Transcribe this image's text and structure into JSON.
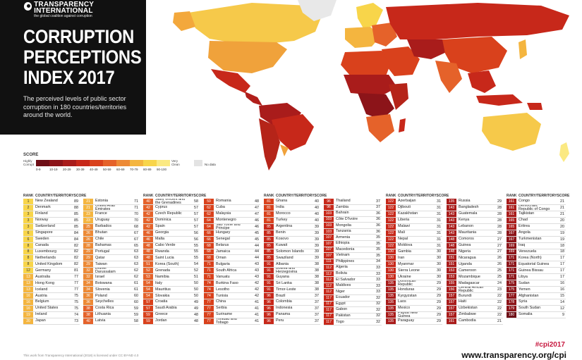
{
  "brand": {
    "name": "TRANSPARENCY INTERNATIONAL",
    "tagline": "the global coalition against corruption"
  },
  "title": "CORRUPTION\nPERCEPTIONS\nINDEX 2017",
  "subtitle": "The perceived levels of public sector corruption in 180 countries/territories around the world.",
  "legend": {
    "title": "SCORE",
    "low_label": "Highly Corrupt",
    "high_label": "Very Clean",
    "bands": [
      "0-9",
      "10-19",
      "20-29",
      "30-39",
      "40-49",
      "50-59",
      "60-69",
      "70-79",
      "80-89",
      "90-100"
    ],
    "colors": [
      "#6e0e16",
      "#8c1419",
      "#a91c1b",
      "#c7281a",
      "#d9411c",
      "#e5622a",
      "#ed8a36",
      "#f4b53f",
      "#f8d54a",
      "#fbe982"
    ],
    "no_data": "No data",
    "no_data_color": "#e3e3e3"
  },
  "headers": {
    "rank": "RANK",
    "country": "COUNTRY/TERRITORY",
    "score": "SCORE"
  },
  "columns": [
    [
      [
        "1",
        "New Zealand",
        "89"
      ],
      [
        "2",
        "Denmark",
        "88"
      ],
      [
        "3",
        "Finland",
        "85"
      ],
      [
        "3",
        "Norway",
        "85"
      ],
      [
        "3",
        "Switzerland",
        "85"
      ],
      [
        "6",
        "Singapore",
        "84"
      ],
      [
        "6",
        "Sweden",
        "84"
      ],
      [
        "8",
        "Canada",
        "82"
      ],
      [
        "8",
        "Luxembourg",
        "82"
      ],
      [
        "8",
        "Netherlands",
        "82"
      ],
      [
        "8",
        "United Kingdom",
        "82"
      ],
      [
        "12",
        "Germany",
        "81"
      ],
      [
        "13",
        "Australia",
        "77"
      ],
      [
        "13",
        "Hong Kong",
        "77"
      ],
      [
        "13",
        "Iceland",
        "77"
      ],
      [
        "16",
        "Austria",
        "75"
      ],
      [
        "16",
        "Belgium",
        "75"
      ],
      [
        "16",
        "United States",
        "75"
      ],
      [
        "19",
        "Ireland",
        "74"
      ],
      [
        "20",
        "Japan",
        "73"
      ]
    ],
    [
      [
        "21",
        "Estonia",
        "71"
      ],
      [
        "21",
        "United Arab Emirates",
        "71"
      ],
      [
        "23",
        "France",
        "70"
      ],
      [
        "23",
        "Uruguay",
        "70"
      ],
      [
        "25",
        "Barbados",
        "68"
      ],
      [
        "26",
        "Bhutan",
        "67"
      ],
      [
        "26",
        "Chile",
        "67"
      ],
      [
        "28",
        "Bahamas",
        "65"
      ],
      [
        "29",
        "Portugal",
        "63"
      ],
      [
        "29",
        "Qatar",
        "63"
      ],
      [
        "29",
        "Taiwan",
        "63"
      ],
      [
        "32",
        "Brunei Darussalam",
        "62"
      ],
      [
        "32",
        "Israel",
        "62"
      ],
      [
        "34",
        "Botswana",
        "61"
      ],
      [
        "34",
        "Slovenia",
        "61"
      ],
      [
        "36",
        "Poland",
        "60"
      ],
      [
        "36",
        "Seychelles",
        "60"
      ],
      [
        "38",
        "Costa Rica",
        "59"
      ],
      [
        "38",
        "Lithuania",
        "59"
      ],
      [
        "40",
        "Latvia",
        "58"
      ]
    ],
    [
      [
        "40",
        "Saint Vincent and the Grenadines",
        "58"
      ],
      [
        "42",
        "Cyprus",
        "57"
      ],
      [
        "42",
        "Czech Republic",
        "57"
      ],
      [
        "42",
        "Dominica",
        "57"
      ],
      [
        "42",
        "Spain",
        "57"
      ],
      [
        "46",
        "Georgia",
        "56"
      ],
      [
        "46",
        "Malta",
        "56"
      ],
      [
        "48",
        "Cabo Verde",
        "55"
      ],
      [
        "48",
        "Rwanda",
        "55"
      ],
      [
        "48",
        "Saint Lucia",
        "55"
      ],
      [
        "51",
        "Korea (South)",
        "54"
      ],
      [
        "52",
        "Grenada",
        "52"
      ],
      [
        "53",
        "Namibia",
        "51"
      ],
      [
        "54",
        "Italy",
        "50"
      ],
      [
        "54",
        "Mauritius",
        "50"
      ],
      [
        "54",
        "Slovakia",
        "50"
      ],
      [
        "57",
        "Croatia",
        "49"
      ],
      [
        "57",
        "Saudi Arabia",
        "49"
      ],
      [
        "59",
        "Greece",
        "48"
      ],
      [
        "59",
        "Jordan",
        "48"
      ]
    ],
    [
      [
        "59",
        "Romania",
        "48"
      ],
      [
        "62",
        "Cuba",
        "47"
      ],
      [
        "62",
        "Malaysia",
        "47"
      ],
      [
        "64",
        "Montenegro",
        "46"
      ],
      [
        "64",
        "Sao Tome and Principe",
        "46"
      ],
      [
        "66",
        "Hungary",
        "45"
      ],
      [
        "66",
        "Senegal",
        "45"
      ],
      [
        "68",
        "Belarus",
        "44"
      ],
      [
        "68",
        "Jamaica",
        "44"
      ],
      [
        "68",
        "Oman",
        "44"
      ],
      [
        "71",
        "Bulgaria",
        "43"
      ],
      [
        "71",
        "South Africa",
        "43"
      ],
      [
        "71",
        "Vanuatu",
        "43"
      ],
      [
        "74",
        "Burkina Faso",
        "42"
      ],
      [
        "74",
        "Lesotho",
        "42"
      ],
      [
        "74",
        "Tunisia",
        "42"
      ],
      [
        "77",
        "China",
        "41"
      ],
      [
        "77",
        "Serbia",
        "41"
      ],
      [
        "77",
        "Suriname",
        "41"
      ],
      [
        "77",
        "Trinidad and Tobago",
        "41"
      ]
    ],
    [
      [
        "81",
        "Ghana",
        "40"
      ],
      [
        "81",
        "India",
        "40"
      ],
      [
        "81",
        "Morocco",
        "40"
      ],
      [
        "81",
        "Turkey",
        "40"
      ],
      [
        "85",
        "Argentina",
        "39"
      ],
      [
        "85",
        "Benin",
        "39"
      ],
      [
        "85",
        "Kosovo",
        "39"
      ],
      [
        "85",
        "Kuwait",
        "39"
      ],
      [
        "85",
        "Solomon Islands",
        "39"
      ],
      [
        "85",
        "Swaziland",
        "39"
      ],
      [
        "91",
        "Albania",
        "38"
      ],
      [
        "91",
        "Bosnia and Herzegovina",
        "38"
      ],
      [
        "91",
        "Guyana",
        "38"
      ],
      [
        "91",
        "Sri Lanka",
        "38"
      ],
      [
        "91",
        "Timor-Leste",
        "38"
      ],
      [
        "96",
        "Brazil",
        "37"
      ],
      [
        "96",
        "Colombia",
        "37"
      ],
      [
        "96",
        "Indonesia",
        "37"
      ],
      [
        "96",
        "Panama",
        "37"
      ],
      [
        "96",
        "Peru",
        "37"
      ]
    ],
    [
      [
        "96",
        "Thailand",
        "37"
      ],
      [
        "96",
        "Zambia",
        "37"
      ],
      [
        "103",
        "Bahrain",
        "36"
      ],
      [
        "103",
        "Côte D'Ivoire",
        "36"
      ],
      [
        "103",
        "Mongolia",
        "36"
      ],
      [
        "103",
        "Tanzania",
        "36"
      ],
      [
        "107",
        "Armenia",
        "35"
      ],
      [
        "107",
        "Ethiopia",
        "35"
      ],
      [
        "107",
        "Macedonia",
        "35"
      ],
      [
        "107",
        "Vietnam",
        "35"
      ],
      [
        "111",
        "Philippines",
        "34"
      ],
      [
        "112",
        "Algeria",
        "33"
      ],
      [
        "112",
        "Bolivia",
        "33"
      ],
      [
        "112",
        "El Salvador",
        "33"
      ],
      [
        "112",
        "Maldives",
        "33"
      ],
      [
        "112",
        "Niger",
        "33"
      ],
      [
        "117",
        "Ecuador",
        "32"
      ],
      [
        "117",
        "Egypt",
        "32"
      ],
      [
        "117",
        "Gabon",
        "32"
      ],
      [
        "117",
        "Pakistan",
        "32"
      ],
      [
        "117",
        "Togo",
        "32"
      ]
    ],
    [
      [
        "122",
        "Azerbaijan",
        "31"
      ],
      [
        "122",
        "Djibouti",
        "31"
      ],
      [
        "122",
        "Kazakhstan",
        "31"
      ],
      [
        "122",
        "Liberia",
        "31"
      ],
      [
        "122",
        "Malawi",
        "31"
      ],
      [
        "122",
        "Mali",
        "31"
      ],
      [
        "122",
        "Nepal",
        "31"
      ],
      [
        "122",
        "Moldova",
        "31"
      ],
      [
        "130",
        "Gambia",
        "30"
      ],
      [
        "130",
        "Iran",
        "30"
      ],
      [
        "130",
        "Myanmar",
        "30"
      ],
      [
        "130",
        "Sierra Leone",
        "30"
      ],
      [
        "130",
        "Ukraine",
        "30"
      ],
      [
        "135",
        "Dominican Republic",
        "29"
      ],
      [
        "135",
        "Honduras",
        "29"
      ],
      [
        "135",
        "Kyrgyzstan",
        "29"
      ],
      [
        "135",
        "Laos",
        "29"
      ],
      [
        "135",
        "Mexico",
        "29"
      ],
      [
        "135",
        "Papua New Guinea",
        "29"
      ],
      [
        "135",
        "Paraguay",
        "29"
      ]
    ],
    [
      [
        "135",
        "Russia",
        "29"
      ],
      [
        "143",
        "Bangladesh",
        "28"
      ],
      [
        "143",
        "Guatemala",
        "28"
      ],
      [
        "143",
        "Kenya",
        "28"
      ],
      [
        "143",
        "Lebanon",
        "28"
      ],
      [
        "143",
        "Mauritania",
        "28"
      ],
      [
        "148",
        "Comoros",
        "27"
      ],
      [
        "148",
        "Guinea",
        "27"
      ],
      [
        "148",
        "Nigeria",
        "27"
      ],
      [
        "151",
        "Nicaragua",
        "26"
      ],
      [
        "151",
        "Uganda",
        "26"
      ],
      [
        "153",
        "Cameroon",
        "25"
      ],
      [
        "153",
        "Mozambique",
        "25"
      ],
      [
        "155",
        "Madagascar",
        "24"
      ],
      [
        "156",
        "Central African Republic",
        "23"
      ],
      [
        "157",
        "Burundi",
        "22"
      ],
      [
        "157",
        "Haiti",
        "22"
      ],
      [
        "157",
        "Uzbekistan",
        "22"
      ],
      [
        "157",
        "Zimbabwe",
        "22"
      ],
      [
        "161",
        "Cambodia",
        "21"
      ]
    ],
    [
      [
        "161",
        "Congo",
        "21"
      ],
      [
        "161",
        "Democratic Republic of Congo",
        "21"
      ],
      [
        "161",
        "Tajikistan",
        "21"
      ],
      [
        "165",
        "Chad",
        "20"
      ],
      [
        "165",
        "Eritrea",
        "20"
      ],
      [
        "167",
        "Angola",
        "19"
      ],
      [
        "167",
        "Turkmenistan",
        "19"
      ],
      [
        "169",
        "Iraq",
        "18"
      ],
      [
        "169",
        "Venezuela",
        "18"
      ],
      [
        "171",
        "Korea (North)",
        "17"
      ],
      [
        "171",
        "Equatorial Guinea",
        "17"
      ],
      [
        "171",
        "Guinea Bissau",
        "17"
      ],
      [
        "171",
        "Libya",
        "17"
      ],
      [
        "175",
        "Sudan",
        "16"
      ],
      [
        "175",
        "Yemen",
        "16"
      ],
      [
        "177",
        "Afghanistan",
        "15"
      ],
      [
        "178",
        "Syria",
        "14"
      ],
      [
        "179",
        "South Sudan",
        "12"
      ],
      [
        "180",
        "Somalia",
        "9"
      ]
    ]
  ],
  "footer": {
    "license": "This work from Transparency International (2018) is licensed under CC BY-ND 4.0",
    "hashtag": "#cpi2017",
    "url": "www.transparency.org/cpi"
  }
}
